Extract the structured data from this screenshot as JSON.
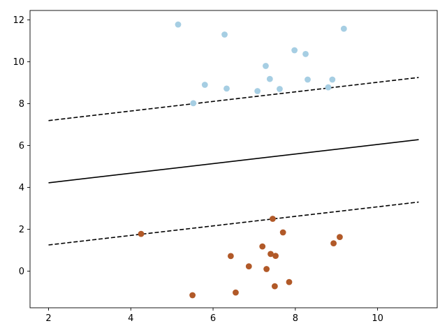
{
  "chart_data": {
    "type": "scatter",
    "title": "",
    "xlabel": "",
    "ylabel": "",
    "xlim": [
      1.55,
      11.45
    ],
    "ylim": [
      -1.75,
      12.45
    ],
    "x_ticks": [
      2,
      4,
      6,
      8,
      10
    ],
    "y_ticks": [
      0,
      2,
      4,
      6,
      8,
      10,
      12
    ],
    "grid": false,
    "legend": false,
    "series": [
      {
        "color": "#a6cee3",
        "points": [
          [
            5.15,
            11.78
          ],
          [
            6.28,
            11.3
          ],
          [
            9.18,
            11.58
          ],
          [
            7.98,
            10.55
          ],
          [
            8.25,
            10.37
          ],
          [
            7.28,
            9.8
          ],
          [
            7.38,
            9.18
          ],
          [
            8.3,
            9.15
          ],
          [
            8.9,
            9.15
          ],
          [
            5.8,
            8.9
          ],
          [
            6.33,
            8.72
          ],
          [
            7.08,
            8.6
          ],
          [
            7.62,
            8.7
          ],
          [
            8.8,
            8.78
          ],
          [
            5.52,
            8.02
          ]
        ]
      },
      {
        "color": "#b15928",
        "points": [
          [
            4.25,
            1.78
          ],
          [
            7.45,
            2.5
          ],
          [
            7.7,
            1.85
          ],
          [
            9.08,
            1.63
          ],
          [
            8.93,
            1.33
          ],
          [
            7.2,
            1.18
          ],
          [
            6.43,
            0.72
          ],
          [
            7.4,
            0.82
          ],
          [
            7.52,
            0.73
          ],
          [
            6.87,
            0.23
          ],
          [
            7.3,
            0.1
          ],
          [
            7.85,
            -0.52
          ],
          [
            7.5,
            -0.72
          ],
          [
            6.55,
            -1.02
          ],
          [
            5.5,
            -1.15
          ]
        ]
      }
    ],
    "lines": [
      {
        "style": "solid",
        "color": "#000000",
        "x": [
          2,
          11
        ],
        "y": [
          4.22,
          6.28
        ]
      },
      {
        "style": "dashed",
        "color": "#000000",
        "x": [
          2,
          11
        ],
        "y": [
          7.19,
          9.25
        ]
      },
      {
        "style": "dashed",
        "color": "#000000",
        "x": [
          2,
          11
        ],
        "y": [
          1.25,
          3.3
        ]
      }
    ]
  }
}
